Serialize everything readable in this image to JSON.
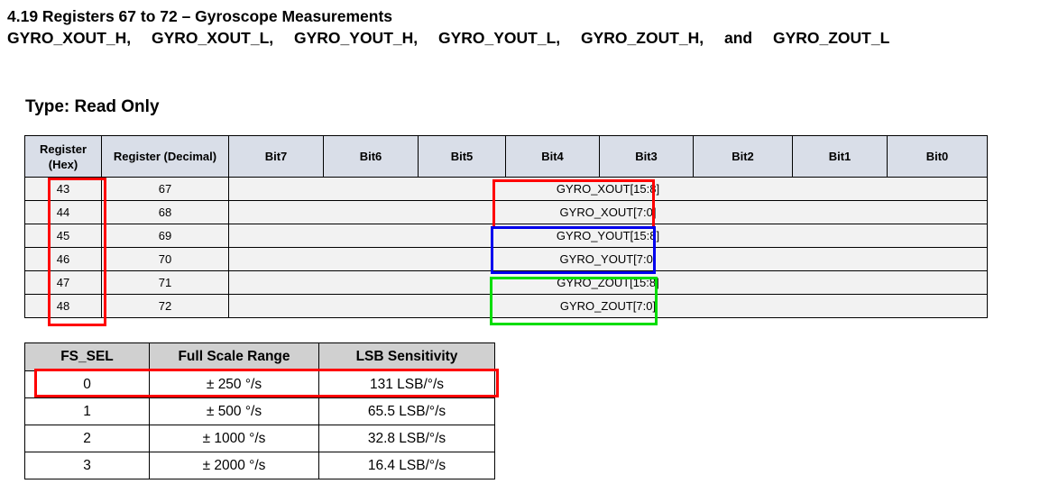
{
  "doc": {
    "title": "4.19   Registers 67 to 72 – Gyroscope Measurements",
    "subtitle": "GYRO_XOUT_H, GYRO_XOUT_L, GYRO_YOUT_H, GYRO_YOUT_L, GYRO_ZOUT_H, and GYRO_ZOUT_L",
    "type_line": "Type: Read Only"
  },
  "register_table": {
    "headers": [
      "Register (Hex)",
      "Register (Decimal)",
      "Bit7",
      "Bit6",
      "Bit5",
      "Bit4",
      "Bit3",
      "Bit2",
      "Bit1",
      "Bit0"
    ],
    "rows": [
      {
        "hex": "43",
        "dec": "67",
        "field": "GYRO_XOUT[15:8]"
      },
      {
        "hex": "44",
        "dec": "68",
        "field": "GYRO_XOUT[7:0]"
      },
      {
        "hex": "45",
        "dec": "69",
        "field": "GYRO_YOUT[15:8]"
      },
      {
        "hex": "46",
        "dec": "70",
        "field": "GYRO_YOUT[7:0]"
      },
      {
        "hex": "47",
        "dec": "71",
        "field": "GYRO_ZOUT[15:8]"
      },
      {
        "hex": "48",
        "dec": "72",
        "field": "GYRO_ZOUT[7:0]"
      }
    ]
  },
  "fs_table": {
    "headers": [
      "FS_SEL",
      "Full Scale Range",
      "LSB Sensitivity"
    ],
    "rows": [
      {
        "fs_sel": "0",
        "range": "± 250 °/s",
        "sensitivity": "131 LSB/°/s"
      },
      {
        "fs_sel": "1",
        "range": "± 500 °/s",
        "sensitivity": "65.5 LSB/°/s"
      },
      {
        "fs_sel": "2",
        "range": "± 1000 °/s",
        "sensitivity": "32.8 LSB/°/s"
      },
      {
        "fs_sel": "3",
        "range": "± 2000 °/s",
        "sensitivity": "16.4 LSB/°/s"
      }
    ]
  },
  "highlight_colors": {
    "hex_column": "#ff0000",
    "x_out": "#ff0000",
    "y_out": "#0000ee",
    "z_out": "#00dd00",
    "fs_row": "#ff0000"
  }
}
